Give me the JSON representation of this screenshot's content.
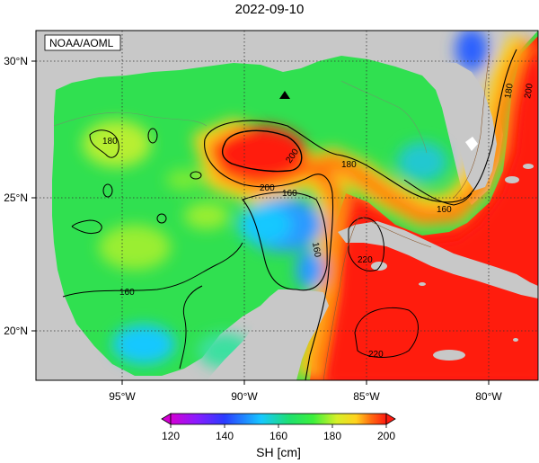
{
  "title": "2022-09-10",
  "credit": "NOAA/AOML",
  "colorbar": {
    "label": "SH [cm]",
    "ticks": [
      "120",
      "140",
      "160",
      "180",
      "200"
    ],
    "colors": [
      "#d400d4",
      "#6a1bff",
      "#1f60ff",
      "#16c8ff",
      "#1ee070",
      "#3cf03c",
      "#d6f028",
      "#ffd21e",
      "#ff6a10",
      "#ff1a10"
    ]
  },
  "axes": {
    "lon_labels": [
      "95°W",
      "90°W",
      "85°W",
      "80°W"
    ],
    "lat_labels": [
      "30°N",
      "25°N",
      "20°N"
    ]
  },
  "contour_labels": [
    "180",
    "200",
    "180",
    "160",
    "200",
    "160",
    "160",
    "180",
    "200",
    "160",
    "220",
    "220"
  ],
  "colors": {
    "land": "#c8c8c8",
    "warm_core": "#ff1a10",
    "cold_core": "#2a9aff",
    "ocean_base": "#30e050"
  }
}
